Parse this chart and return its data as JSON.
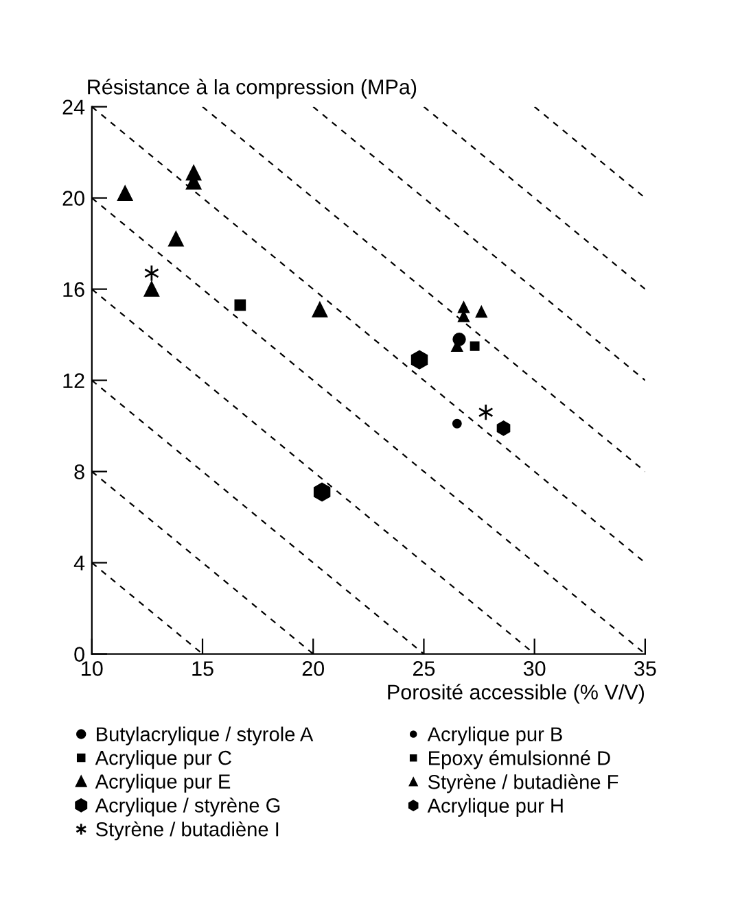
{
  "chart_data": {
    "type": "scatter",
    "ylabel": "Résistance à la compression (MPa)",
    "xlabel": "Porosité accessible (% V/V)",
    "xlim": [
      10,
      35
    ],
    "xticks": [
      10,
      15,
      20,
      25,
      30,
      35
    ],
    "ylim": [
      0,
      24
    ],
    "yticks": [
      0,
      4,
      8,
      12,
      16,
      20,
      24
    ],
    "grid": false,
    "legend": "bottom",
    "series": [
      {
        "name": "Butylacrylique / styrole A",
        "color": "#000000",
        "marker": "circle",
        "x": [
          26.6
        ],
        "values": [
          13.8
        ]
      },
      {
        "name": "Acrylique pur B",
        "color": "#000000",
        "marker": "circle",
        "x": [
          26.5
        ],
        "values": [
          10.1
        ]
      },
      {
        "name": "Acrylique pur C",
        "color": "#000000",
        "marker": "square",
        "x": [
          16.7
        ],
        "values": [
          15.3
        ]
      },
      {
        "name": "Epoxy émulsionné D",
        "color": "#000000",
        "marker": "square",
        "x": [
          27.3
        ],
        "values": [
          13.5
        ]
      },
      {
        "name": "Acrylique pur E",
        "color": "#000000",
        "marker": "triangle",
        "x": [
          11.5,
          13.8,
          14.6,
          14.6,
          12.7,
          20.3
        ],
        "values": [
          20.2,
          18.2,
          21.1,
          20.7,
          16.0,
          15.1
        ]
      },
      {
        "name": "Styrène / butadiène F",
        "color": "#000000",
        "marker": "triangle",
        "x": [
          26.8,
          26.8,
          27.6,
          26.5
        ],
        "values": [
          15.2,
          14.8,
          15.0,
          13.5
        ]
      },
      {
        "name": "Acrylique / styrène G",
        "color": "#000000",
        "x": [
          24.8,
          20.4
        ],
        "values": [
          12.9,
          7.1
        ]
      },
      {
        "name": "Acrylique pur H",
        "color": "#000000",
        "x": [
          28.6
        ],
        "values": [
          9.9
        ]
      },
      {
        "name": "Styrène / butadiène I",
        "color": "#000000",
        "marker": "cross",
        "x": [
          12.7,
          27.8
        ],
        "values": [
          16.7,
          10.6
        ]
      },
      {
        "type": "line",
        "color": "#000000",
        "line_style": "dashed",
        "marker": "none",
        "x": [
          10,
          15
        ],
        "values": [
          4,
          0
        ]
      },
      {
        "type": "line",
        "color": "#000000",
        "line_style": "dashed",
        "marker": "none",
        "x": [
          10,
          20
        ],
        "values": [
          8,
          0
        ]
      },
      {
        "type": "line",
        "color": "#000000",
        "line_style": "dashed",
        "marker": "none",
        "x": [
          10,
          25
        ],
        "values": [
          12,
          0
        ]
      },
      {
        "type": "line",
        "color": "#000000",
        "line_style": "dashed",
        "marker": "none",
        "x": [
          10,
          30
        ],
        "values": [
          16,
          0
        ]
      },
      {
        "type": "line",
        "color": "#000000",
        "line_style": "dashed",
        "marker": "none",
        "x": [
          10,
          35
        ],
        "values": [
          20,
          0
        ]
      },
      {
        "type": "line",
        "color": "#000000",
        "line_style": "dashed",
        "marker": "none",
        "x": [
          10,
          35
        ],
        "values": [
          24,
          4
        ]
      },
      {
        "type": "line",
        "color": "#000000",
        "line_style": "dashed",
        "marker": "none",
        "x": [
          15,
          35
        ],
        "values": [
          24,
          8
        ]
      },
      {
        "type": "line",
        "color": "#000000",
        "line_style": "dashed",
        "marker": "none",
        "x": [
          20,
          35
        ],
        "values": [
          24,
          12
        ]
      },
      {
        "type": "line",
        "color": "#000000",
        "line_style": "dashed",
        "marker": "none",
        "x": [
          25,
          35
        ],
        "values": [
          24,
          16
        ]
      },
      {
        "type": "line",
        "color": "#000000",
        "line_style": "dashed",
        "marker": "none",
        "x": [
          30,
          35
        ],
        "values": [
          24,
          20
        ]
      }
    ]
  }
}
